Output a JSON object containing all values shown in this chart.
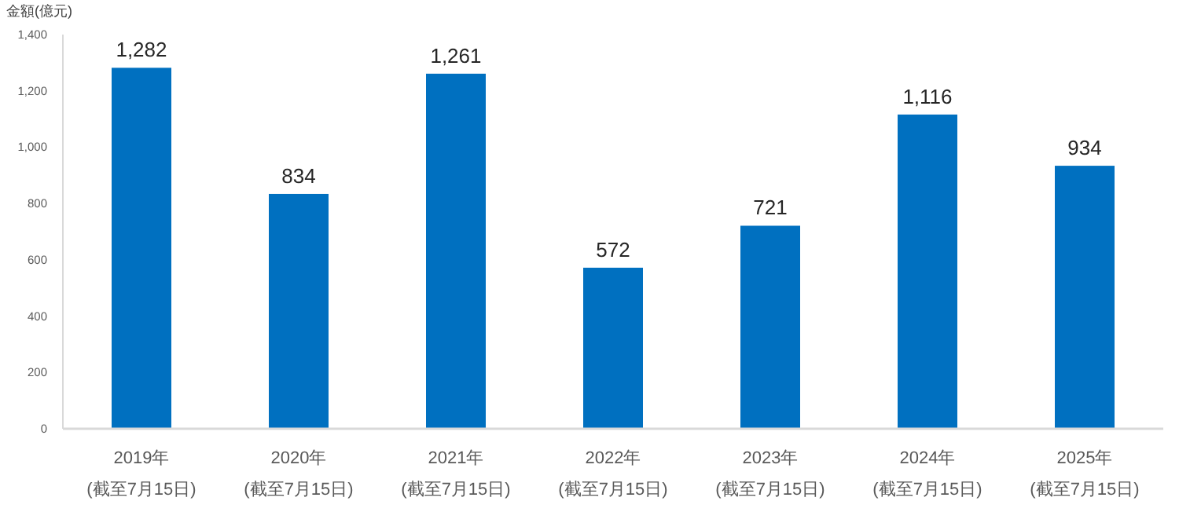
{
  "chart_data": {
    "type": "bar",
    "ylabel": "金額(億元)",
    "categories": [
      "2019年\n(截至7月15日)",
      "2020年\n(截至7月15日)",
      "2021年\n(截至7月15日)",
      "2022年\n(截至7月15日)",
      "2023年\n(截至7月15日)",
      "2024年\n(截至7月15日)",
      "2025年\n(截至7月15日)"
    ],
    "values": [
      1282,
      834,
      1261,
      572,
      721,
      1116,
      934
    ],
    "value_labels": [
      "1,282",
      "834",
      "1,261",
      "572",
      "721",
      "1,116",
      "934"
    ],
    "color": "#0070c0",
    "ylim": [
      0,
      1400
    ],
    "yticks": [
      0,
      200,
      400,
      600,
      800,
      {
        "value": 1000,
        "label": "1,000"
      },
      {
        "value": 1200,
        "label": "1,200"
      },
      {
        "value": 1400,
        "label": "1,400"
      }
    ],
    "grid": false
  }
}
